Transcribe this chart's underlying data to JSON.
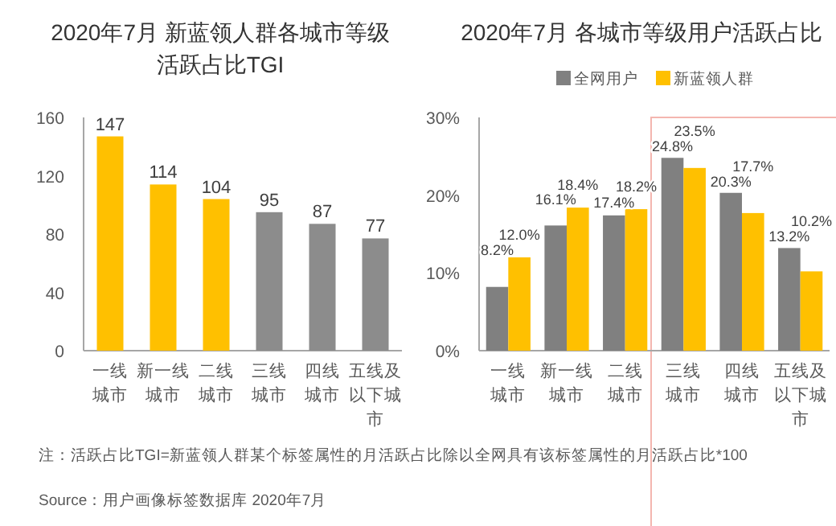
{
  "chart_data": [
    {
      "type": "bar",
      "title": "2020年7月 新蓝领人群各城市等级活跃占比TGI",
      "categories": [
        "一线城市",
        "新一线城市",
        "二线城市",
        "三线城市",
        "四线城市",
        "五线及以下城市"
      ],
      "values": [
        147,
        114,
        104,
        95,
        87,
        77
      ],
      "colors": [
        "#ffc000",
        "#ffc000",
        "#ffc000",
        "#8c8c8c",
        "#8c8c8c",
        "#8c8c8c"
      ],
      "ylim": [
        0,
        160
      ],
      "yticks": [
        0,
        40,
        80,
        120,
        160
      ],
      "data_labels": true,
      "grid": false,
      "annotations": [
        "注：活跃占比TGI=新蓝领人群某个标签属性的月活跃占比除以全网具有该标签属性的月活跃占比*100",
        "Source：用户画像标签数据库 2020年7月"
      ]
    },
    {
      "type": "bar",
      "title": "2020年7月 各城市等级用户活跃占比",
      "categories": [
        "一线城市",
        "新一线城市",
        "二线城市",
        "三线城市",
        "四线城市",
        "五线及以下城市"
      ],
      "series": [
        {
          "name": "全网用户",
          "color": "#808080",
          "values": [
            8.2,
            16.1,
            17.4,
            24.8,
            20.3,
            13.2
          ],
          "value_labels": [
            "8.2%",
            "16.1%",
            "17.4%",
            "24.8%",
            "20.3%",
            "13.2%"
          ]
        },
        {
          "name": "新蓝领人群",
          "color": "#ffc000",
          "values": [
            12.0,
            18.4,
            18.2,
            23.5,
            17.7,
            10.2
          ],
          "value_labels": [
            "12.0%",
            "18.4%",
            "18.2%",
            "23.5%",
            "17.7%",
            "10.2%"
          ]
        }
      ],
      "ylim": [
        0,
        30
      ],
      "yticks": [
        {
          "value": 0,
          "label": "0%"
        },
        {
          "value": 10,
          "label": "10%"
        },
        {
          "value": 20,
          "label": "20%"
        },
        {
          "value": 30,
          "label": "30%"
        }
      ],
      "legend": "top",
      "grid": false
    }
  ]
}
